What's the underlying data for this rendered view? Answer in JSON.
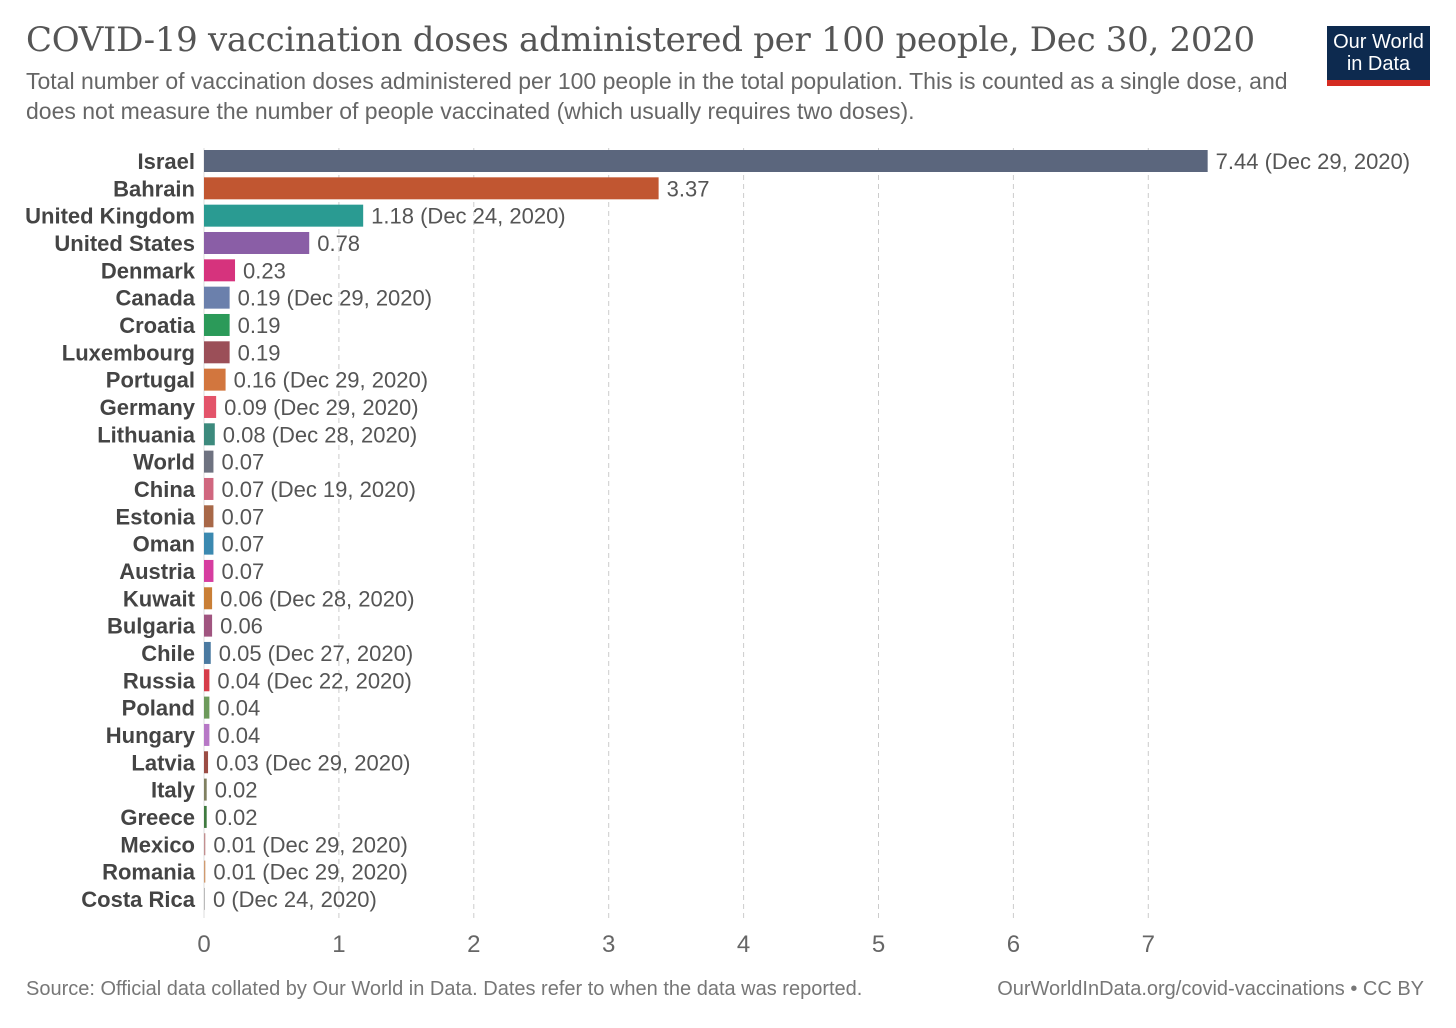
{
  "header": {
    "title": "COVID-19 vaccination doses administered per 100 people, Dec 30, 2020",
    "subtitle": "Total number of vaccination doses administered per 100 people in the total population. This is counted as a single dose, and does not measure the number of people vaccinated (which usually requires two doses).",
    "logo_line1": "Our World",
    "logo_line2": "in Data"
  },
  "footer": {
    "source": "Source: Official data collated by Our World in Data. Dates refer to when the data was reported.",
    "credit": "OurWorldInData.org/covid-vaccinations • CC BY"
  },
  "colors": {
    "logo_bg": "#0d2a4f",
    "logo_accent": "#d42b21",
    "grid": "#cccccc",
    "label_text": "#444444",
    "value_text": "#555555"
  },
  "chart_data": {
    "type": "bar",
    "orientation": "horizontal",
    "title": "COVID-19 vaccination doses administered per 100 people, Dec 30, 2020",
    "xlim": [
      0,
      7.5
    ],
    "xticks": [
      "0",
      "1",
      "2",
      "3",
      "4",
      "5",
      "6",
      "7"
    ],
    "grid": "vertical dashed",
    "categories": [
      "Israel",
      "Bahrain",
      "United Kingdom",
      "United States",
      "Denmark",
      "Canada",
      "Croatia",
      "Luxembourg",
      "Portugal",
      "Germany",
      "Lithuania",
      "World",
      "China",
      "Estonia",
      "Oman",
      "Austria",
      "Kuwait",
      "Bulgaria",
      "Chile",
      "Russia",
      "Poland",
      "Hungary",
      "Latvia",
      "Italy",
      "Greece",
      "Mexico",
      "Romania",
      "Costa Rica"
    ],
    "values": [
      7.44,
      3.37,
      1.18,
      0.78,
      0.23,
      0.19,
      0.19,
      0.19,
      0.16,
      0.09,
      0.08,
      0.07,
      0.07,
      0.07,
      0.07,
      0.07,
      0.06,
      0.06,
      0.05,
      0.04,
      0.04,
      0.04,
      0.03,
      0.02,
      0.02,
      0.01,
      0.01,
      0
    ],
    "value_labels": [
      "7.44 (Dec 29, 2020)",
      "3.37",
      "1.18 (Dec 24, 2020)",
      "0.78",
      "0.23",
      "0.19 (Dec 29, 2020)",
      "0.19",
      "0.19",
      "0.16 (Dec 29, 2020)",
      "0.09 (Dec 29, 2020)",
      "0.08 (Dec 28, 2020)",
      "0.07",
      "0.07 (Dec 19, 2020)",
      "0.07",
      "0.07",
      "0.07",
      "0.06 (Dec 28, 2020)",
      "0.06",
      "0.05 (Dec 27, 2020)",
      "0.04 (Dec 22, 2020)",
      "0.04",
      "0.04",
      "0.03 (Dec 29, 2020)",
      "0.02",
      "0.02",
      "0.01 (Dec 29, 2020)",
      "0.01 (Dec 29, 2020)",
      "0 (Dec 24, 2020)"
    ],
    "bar_colors": [
      "#5b667d",
      "#c15631",
      "#2a9b92",
      "#8a5ea6",
      "#d6337d",
      "#6b80ac",
      "#2b9a59",
      "#9b4f58",
      "#d2763e",
      "#e3546a",
      "#3d8a7d",
      "#6e7280",
      "#d0677f",
      "#a86848",
      "#3b89b0",
      "#d63da0",
      "#c97f36",
      "#a05580",
      "#4b7aa1",
      "#d63d4a",
      "#6d9a5b",
      "#b778c6",
      "#9b4d45",
      "#808060",
      "#3f7a3f",
      "#c29090",
      "#d09a70",
      "#bbbbbb"
    ]
  }
}
